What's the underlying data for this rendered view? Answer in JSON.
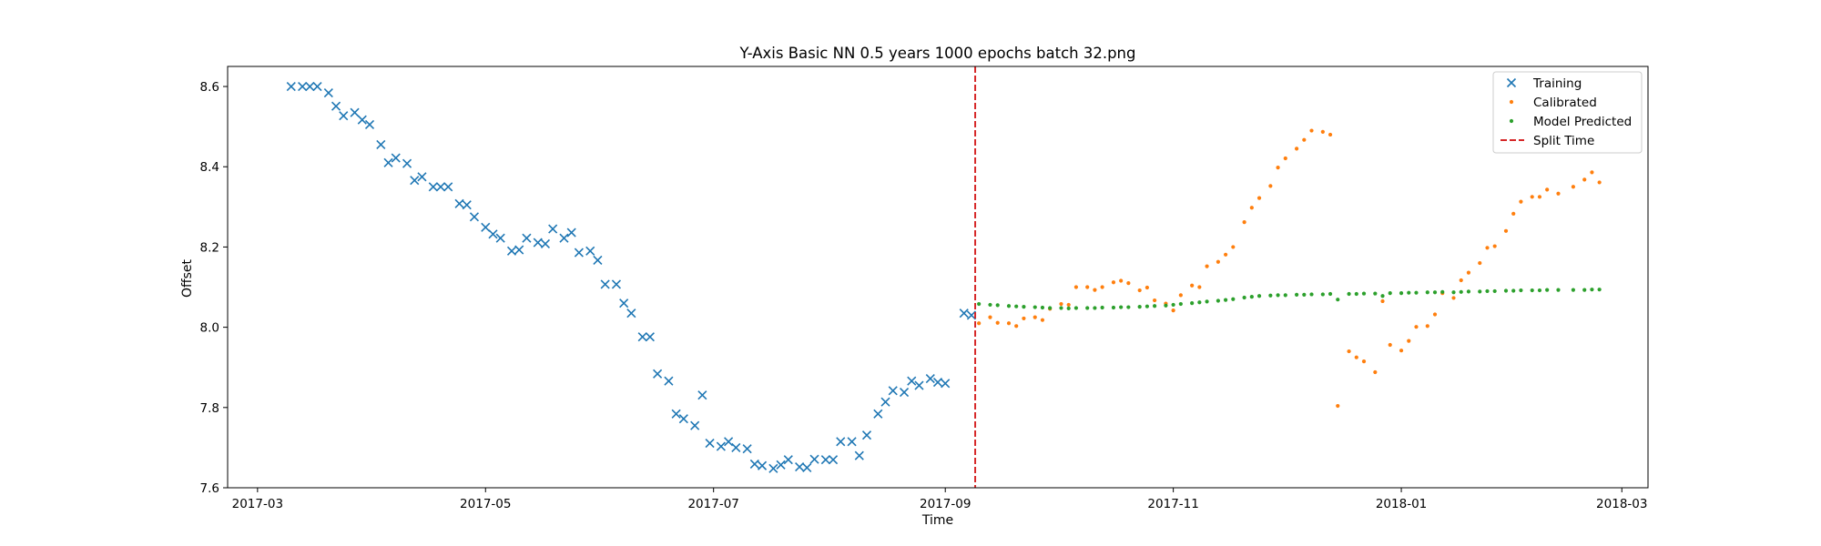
{
  "chart_data": {
    "type": "scatter",
    "title": "Y-Axis Basic NN 0.5 years 1000 epochs batch 32.png",
    "xlabel": "Time",
    "ylabel": "Offset",
    "xlim": [
      "2017-02-21",
      "2018-03-08"
    ],
    "ylim": [
      7.6,
      8.65
    ],
    "grid": false,
    "legend_position": "top-right",
    "x_ticks": [
      "2017-03",
      "2017-05",
      "2017-07",
      "2017-09",
      "2017-11",
      "2018-01",
      "2018-03"
    ],
    "y_ticks": [
      "7.6",
      "7.8",
      "8.0",
      "8.2",
      "8.4",
      "8.6"
    ],
    "series": [
      {
        "name": "Training",
        "marker": "x",
        "color": "#1f77b4",
        "points": [
          [
            "2017-03-10",
            8.6
          ],
          [
            "2017-03-13",
            8.6
          ],
          [
            "2017-03-15",
            8.6
          ],
          [
            "2017-03-17",
            8.6
          ],
          [
            "2017-03-20",
            8.584
          ],
          [
            "2017-03-22",
            8.551
          ],
          [
            "2017-03-24",
            8.527
          ],
          [
            "2017-03-27",
            8.535
          ],
          [
            "2017-03-29",
            8.517
          ],
          [
            "2017-03-31",
            8.505
          ],
          [
            "2017-04-03",
            8.455
          ],
          [
            "2017-04-05",
            8.41
          ],
          [
            "2017-04-07",
            8.422
          ],
          [
            "2017-04-10",
            8.408
          ],
          [
            "2017-04-12",
            8.366
          ],
          [
            "2017-04-14",
            8.375
          ],
          [
            "2017-04-17",
            8.35
          ],
          [
            "2017-04-19",
            8.35
          ],
          [
            "2017-04-21",
            8.35
          ],
          [
            "2017-04-24",
            8.308
          ],
          [
            "2017-04-26",
            8.305
          ],
          [
            "2017-04-28",
            8.275
          ],
          [
            "2017-05-01",
            8.249
          ],
          [
            "2017-05-03",
            8.232
          ],
          [
            "2017-05-05",
            8.222
          ],
          [
            "2017-05-08",
            8.19
          ],
          [
            "2017-05-10",
            8.193
          ],
          [
            "2017-05-12",
            8.222
          ],
          [
            "2017-05-15",
            8.211
          ],
          [
            "2017-05-17",
            8.208
          ],
          [
            "2017-05-19",
            8.245
          ],
          [
            "2017-05-22",
            8.222
          ],
          [
            "2017-05-24",
            8.236
          ],
          [
            "2017-05-26",
            8.186
          ],
          [
            "2017-05-29",
            8.19
          ],
          [
            "2017-05-31",
            8.167
          ],
          [
            "2017-06-02",
            8.107
          ],
          [
            "2017-06-05",
            8.107
          ],
          [
            "2017-06-07",
            8.06
          ],
          [
            "2017-06-09",
            8.035
          ],
          [
            "2017-06-12",
            7.976
          ],
          [
            "2017-06-14",
            7.976
          ],
          [
            "2017-06-16",
            7.884
          ],
          [
            "2017-06-19",
            7.866
          ],
          [
            "2017-06-21",
            7.784
          ],
          [
            "2017-06-23",
            7.772
          ],
          [
            "2017-06-26",
            7.755
          ],
          [
            "2017-06-28",
            7.831
          ],
          [
            "2017-06-30",
            7.711
          ],
          [
            "2017-07-03",
            7.703
          ],
          [
            "2017-07-05",
            7.715
          ],
          [
            "2017-07-07",
            7.7
          ],
          [
            "2017-07-10",
            7.697
          ],
          [
            "2017-07-12",
            7.659
          ],
          [
            "2017-07-14",
            7.655
          ],
          [
            "2017-07-17",
            7.648
          ],
          [
            "2017-07-19",
            7.657
          ],
          [
            "2017-07-21",
            7.67
          ],
          [
            "2017-07-24",
            7.652
          ],
          [
            "2017-07-26",
            7.65
          ],
          [
            "2017-07-28",
            7.671
          ],
          [
            "2017-07-31",
            7.67
          ],
          [
            "2017-08-02",
            7.67
          ],
          [
            "2017-08-04",
            7.715
          ],
          [
            "2017-08-07",
            7.715
          ],
          [
            "2017-08-09",
            7.68
          ],
          [
            "2017-08-11",
            7.731
          ],
          [
            "2017-08-14",
            7.784
          ],
          [
            "2017-08-16",
            7.814
          ],
          [
            "2017-08-18",
            7.842
          ],
          [
            "2017-08-21",
            7.838
          ],
          [
            "2017-08-23",
            7.866
          ],
          [
            "2017-08-25",
            7.855
          ],
          [
            "2017-08-28",
            7.872
          ],
          [
            "2017-08-30",
            7.863
          ],
          [
            "2017-09-01",
            7.86
          ],
          [
            "2017-09-06",
            8.035
          ],
          [
            "2017-09-08",
            8.03
          ]
        ]
      },
      {
        "name": "Calibrated",
        "marker": "dot",
        "color": "#ff7f0e",
        "points": [
          [
            "2017-09-10",
            8.01
          ],
          [
            "2017-09-13",
            8.025
          ],
          [
            "2017-09-15",
            8.011
          ],
          [
            "2017-09-18",
            8.01
          ],
          [
            "2017-09-20",
            8.003
          ],
          [
            "2017-09-22",
            8.022
          ],
          [
            "2017-09-25",
            8.025
          ],
          [
            "2017-09-27",
            8.018
          ],
          [
            "2017-09-29",
            8.046
          ],
          [
            "2017-10-02",
            8.058
          ],
          [
            "2017-10-04",
            8.056
          ],
          [
            "2017-10-06",
            8.1
          ],
          [
            "2017-10-09",
            8.1
          ],
          [
            "2017-10-11",
            8.093
          ],
          [
            "2017-10-13",
            8.1
          ],
          [
            "2017-10-16",
            8.112
          ],
          [
            "2017-10-18",
            8.116
          ],
          [
            "2017-10-20",
            8.11
          ],
          [
            "2017-10-23",
            8.092
          ],
          [
            "2017-10-25",
            8.099
          ],
          [
            "2017-10-27",
            8.067
          ],
          [
            "2017-10-30",
            8.059
          ],
          [
            "2017-11-01",
            8.042
          ],
          [
            "2017-11-03",
            8.08
          ],
          [
            "2017-11-06",
            8.104
          ],
          [
            "2017-11-08",
            8.1
          ],
          [
            "2017-11-10",
            8.152
          ],
          [
            "2017-11-13",
            8.163
          ],
          [
            "2017-11-15",
            8.181
          ],
          [
            "2017-11-17",
            8.2
          ],
          [
            "2017-11-20",
            8.262
          ],
          [
            "2017-11-22",
            8.298
          ],
          [
            "2017-11-24",
            8.322
          ],
          [
            "2017-11-27",
            8.352
          ],
          [
            "2017-11-29",
            8.398
          ],
          [
            "2017-12-01",
            8.421
          ],
          [
            "2017-12-04",
            8.445
          ],
          [
            "2017-12-06",
            8.467
          ],
          [
            "2017-12-08",
            8.49
          ],
          [
            "2017-12-11",
            8.487
          ],
          [
            "2017-12-13",
            8.48
          ],
          [
            "2017-12-15",
            7.804
          ],
          [
            "2017-12-18",
            7.94
          ],
          [
            "2017-12-20",
            7.925
          ],
          [
            "2017-12-22",
            7.915
          ],
          [
            "2017-12-25",
            7.888
          ],
          [
            "2017-12-27",
            8.065
          ],
          [
            "2017-12-29",
            7.956
          ],
          [
            "2018-01-01",
            7.942
          ],
          [
            "2018-01-03",
            7.966
          ],
          [
            "2018-01-05",
            8.001
          ],
          [
            "2018-01-08",
            8.003
          ],
          [
            "2018-01-10",
            8.032
          ],
          [
            "2018-01-12",
            8.085
          ],
          [
            "2018-01-15",
            8.073
          ],
          [
            "2018-01-17",
            8.117
          ],
          [
            "2018-01-19",
            8.136
          ],
          [
            "2018-01-22",
            8.16
          ],
          [
            "2018-01-24",
            8.198
          ],
          [
            "2018-01-26",
            8.202
          ],
          [
            "2018-01-29",
            8.24
          ],
          [
            "2018-01-31",
            8.283
          ],
          [
            "2018-02-02",
            8.313
          ],
          [
            "2018-02-05",
            8.325
          ],
          [
            "2018-02-07",
            8.325
          ],
          [
            "2018-02-09",
            8.343
          ],
          [
            "2018-02-12",
            8.333
          ],
          [
            "2018-02-16",
            8.35
          ],
          [
            "2018-02-19",
            8.368
          ],
          [
            "2018-02-21",
            8.386
          ],
          [
            "2018-02-23",
            8.361
          ]
        ]
      },
      {
        "name": "Model Predicted",
        "marker": "dot",
        "color": "#2ca02c",
        "points": [
          [
            "2017-09-10",
            8.058
          ],
          [
            "2017-09-13",
            8.056
          ],
          [
            "2017-09-15",
            8.055
          ],
          [
            "2017-09-18",
            8.053
          ],
          [
            "2017-09-20",
            8.052
          ],
          [
            "2017-09-22",
            8.051
          ],
          [
            "2017-09-25",
            8.05
          ],
          [
            "2017-09-27",
            8.049
          ],
          [
            "2017-09-29",
            8.048
          ],
          [
            "2017-10-02",
            8.048
          ],
          [
            "2017-10-04",
            8.047
          ],
          [
            "2017-10-06",
            8.048
          ],
          [
            "2017-10-09",
            8.048
          ],
          [
            "2017-10-11",
            8.048
          ],
          [
            "2017-10-13",
            8.049
          ],
          [
            "2017-10-16",
            8.049
          ],
          [
            "2017-10-18",
            8.05
          ],
          [
            "2017-10-20",
            8.05
          ],
          [
            "2017-10-23",
            8.051
          ],
          [
            "2017-10-25",
            8.052
          ],
          [
            "2017-10-27",
            8.053
          ],
          [
            "2017-10-30",
            8.054
          ],
          [
            "2017-11-01",
            8.056
          ],
          [
            "2017-11-03",
            8.058
          ],
          [
            "2017-11-06",
            8.06
          ],
          [
            "2017-11-08",
            8.062
          ],
          [
            "2017-11-10",
            8.064
          ],
          [
            "2017-11-13",
            8.066
          ],
          [
            "2017-11-15",
            8.068
          ],
          [
            "2017-11-17",
            8.07
          ],
          [
            "2017-11-20",
            8.074
          ],
          [
            "2017-11-22",
            8.076
          ],
          [
            "2017-11-24",
            8.078
          ],
          [
            "2017-11-27",
            8.079
          ],
          [
            "2017-11-29",
            8.08
          ],
          [
            "2017-12-01",
            8.08
          ],
          [
            "2017-12-04",
            8.081
          ],
          [
            "2017-12-06",
            8.081
          ],
          [
            "2017-12-08",
            8.082
          ],
          [
            "2017-12-11",
            8.082
          ],
          [
            "2017-12-13",
            8.083
          ],
          [
            "2017-12-15",
            8.069
          ],
          [
            "2017-12-18",
            8.083
          ],
          [
            "2017-12-20",
            8.083
          ],
          [
            "2017-12-22",
            8.084
          ],
          [
            "2017-12-25",
            8.084
          ],
          [
            "2017-12-27",
            8.078
          ],
          [
            "2017-12-29",
            8.085
          ],
          [
            "2018-01-01",
            8.085
          ],
          [
            "2018-01-03",
            8.086
          ],
          [
            "2018-01-05",
            8.086
          ],
          [
            "2018-01-08",
            8.087
          ],
          [
            "2018-01-10",
            8.087
          ],
          [
            "2018-01-12",
            8.088
          ],
          [
            "2018-01-15",
            8.087
          ],
          [
            "2018-01-17",
            8.088
          ],
          [
            "2018-01-19",
            8.089
          ],
          [
            "2018-01-22",
            8.089
          ],
          [
            "2018-01-24",
            8.09
          ],
          [
            "2018-01-26",
            8.09
          ],
          [
            "2018-01-29",
            8.091
          ],
          [
            "2018-01-31",
            8.091
          ],
          [
            "2018-02-02",
            8.092
          ],
          [
            "2018-02-05",
            8.092
          ],
          [
            "2018-02-07",
            8.092
          ],
          [
            "2018-02-09",
            8.093
          ],
          [
            "2018-02-12",
            8.093
          ],
          [
            "2018-02-16",
            8.093
          ],
          [
            "2018-02-19",
            8.093
          ],
          [
            "2018-02-21",
            8.094
          ],
          [
            "2018-02-23",
            8.094
          ]
        ]
      }
    ],
    "vlines": [
      {
        "name": "Split Time",
        "x": "2017-09-09",
        "color": "#d62728",
        "style": "dashed"
      }
    ]
  }
}
